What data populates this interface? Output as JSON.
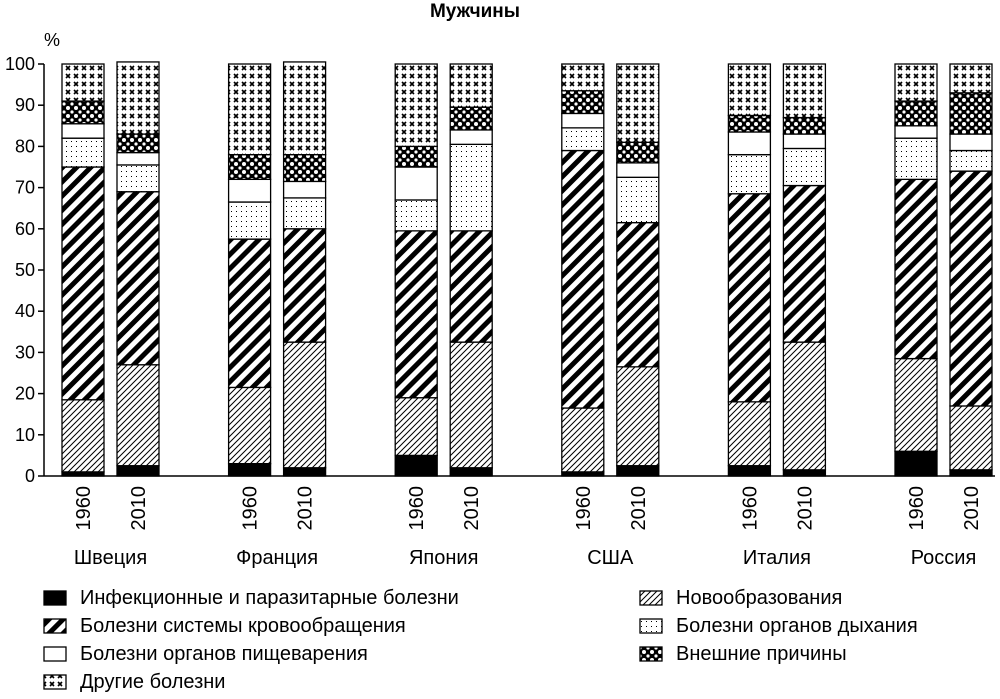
{
  "chart_data": {
    "type": "bar",
    "stacked": true,
    "title": "Мужчины",
    "ylabel": "%",
    "ylim": [
      0,
      100
    ],
    "yticks": [
      0,
      10,
      20,
      30,
      40,
      50,
      60,
      70,
      80,
      90,
      100
    ],
    "grid": false,
    "legend_position": "bottom",
    "groups": [
      "Швеция",
      "Франция",
      "Япония",
      "США",
      "Италия",
      "Россия"
    ],
    "years": [
      "1960",
      "2010"
    ],
    "series": [
      {
        "name": "Инфекционные и паразитарные болезни",
        "pattern": "solid-black",
        "values": [
          [
            1,
            2.5
          ],
          [
            3,
            2
          ],
          [
            5,
            2
          ],
          [
            1,
            2.5
          ],
          [
            2.5,
            1.5
          ],
          [
            6,
            1.5
          ]
        ]
      },
      {
        "name": "Новообразования",
        "pattern": "thin-diagonal",
        "values": [
          [
            17.5,
            24.5
          ],
          [
            18.5,
            30.5
          ],
          [
            14,
            30.5
          ],
          [
            15.5,
            24
          ],
          [
            15.5,
            31
          ],
          [
            22.5,
            15.5
          ]
        ]
      },
      {
        "name": "Болезни системы кровообращения",
        "pattern": "thick-diagonal",
        "values": [
          [
            56.5,
            42
          ],
          [
            36,
            27.5
          ],
          [
            40.5,
            27
          ],
          [
            62.5,
            35
          ],
          [
            50.5,
            38
          ],
          [
            43.5,
            57
          ]
        ]
      },
      {
        "name": "Болезни органов дыхания",
        "pattern": "dots",
        "values": [
          [
            7,
            6.5
          ],
          [
            9,
            7.5
          ],
          [
            7.5,
            21
          ],
          [
            5.5,
            11
          ],
          [
            9.5,
            9
          ],
          [
            10,
            5
          ]
        ]
      },
      {
        "name": "Болезни органов пищеварения",
        "pattern": "white",
        "values": [
          [
            3.5,
            3
          ],
          [
            5.5,
            4
          ],
          [
            8,
            3.5
          ],
          [
            3.5,
            3.5
          ],
          [
            5.5,
            3.5
          ],
          [
            3,
            4
          ]
        ]
      },
      {
        "name": "Внешние причины",
        "pattern": "circles",
        "values": [
          [
            5.5,
            4.5
          ],
          [
            6,
            6.5
          ],
          [
            5,
            5.5
          ],
          [
            5.5,
            5
          ],
          [
            4,
            4
          ],
          [
            6,
            10
          ]
        ]
      },
      {
        "name": "Другие болезни",
        "pattern": "crosses",
        "values": [
          [
            9,
            17.5
          ],
          [
            22,
            22.5
          ],
          [
            20,
            10.5
          ],
          [
            6.5,
            19
          ],
          [
            12.5,
            13
          ],
          [
            9,
            7
          ]
        ]
      }
    ],
    "legend_order": [
      "Инфекционные и паразитарные болезни",
      "Новообразования",
      "Болезни системы кровообращения",
      "Болезни органов дыхания",
      "Болезни органов пищеварения",
      "Внешние причины",
      "Другие болезни"
    ]
  }
}
